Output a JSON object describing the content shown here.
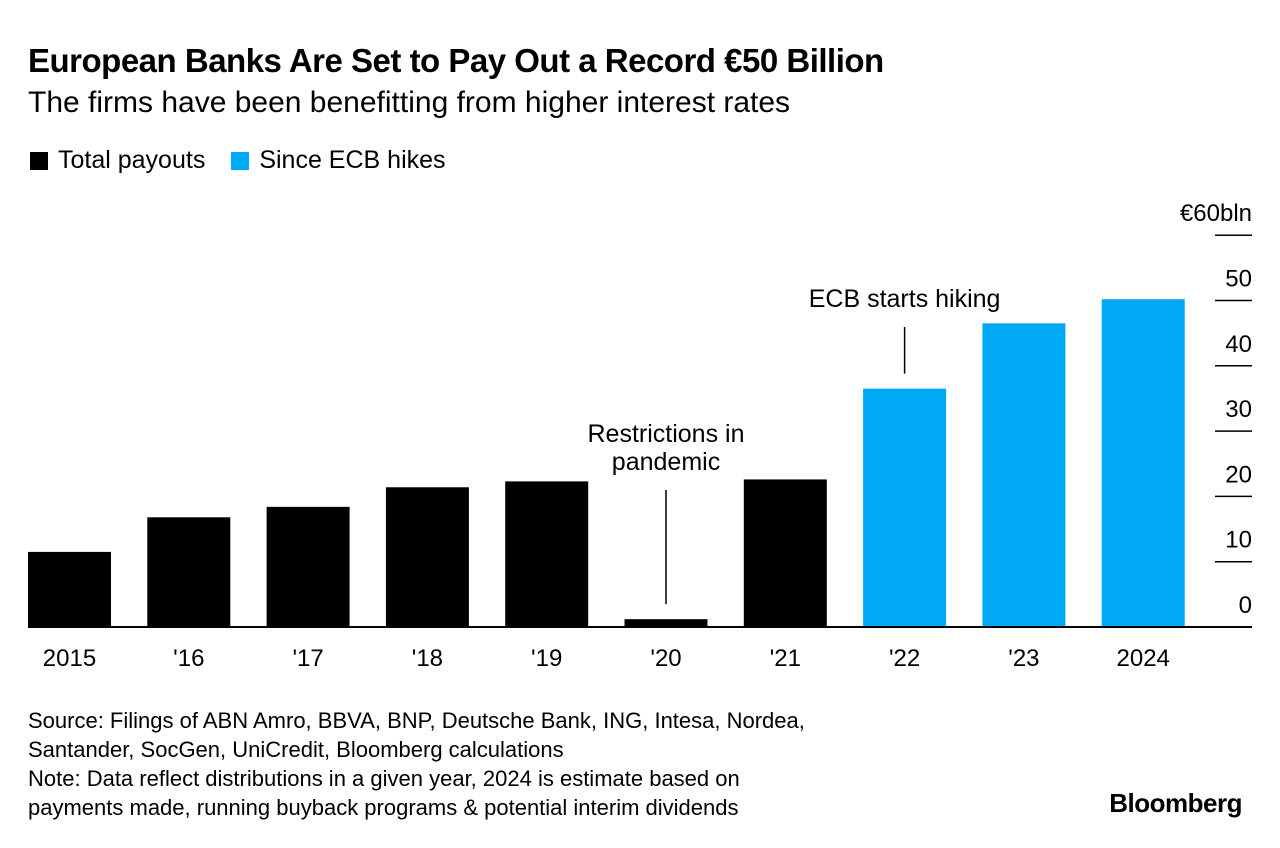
{
  "header": {
    "title": "European Banks Are Set to Pay Out a Record €50 Billion",
    "subtitle": "The firms have been benefitting from higher interest rates"
  },
  "colors": {
    "total": "#000000",
    "since_hikes": "#00A9F4"
  },
  "chart_data": {
    "type": "bar",
    "title": "European Banks Are Set to Pay Out a Record €50 Billion",
    "subtitle": "The firms have been benefitting from higher interest rates",
    "unit_label": "€60bln",
    "categories": [
      "2015",
      "'16",
      "'17",
      "'18",
      "'19",
      "'20",
      "'21",
      "'22",
      "'23",
      "2024"
    ],
    "series": [
      {
        "name": "Total payouts",
        "color": "#000000",
        "values": [
          11.5,
          16.8,
          18.4,
          21.4,
          22.3,
          1.2,
          22.6,
          null,
          null,
          null
        ]
      },
      {
        "name": "Since ECB hikes",
        "color": "#00A9F4",
        "values": [
          null,
          null,
          null,
          null,
          null,
          null,
          null,
          36.5,
          46.5,
          50.2
        ]
      }
    ],
    "ylim": [
      0,
      60
    ],
    "yticks": [
      0,
      10,
      20,
      30,
      40,
      50
    ],
    "yaxis_position": "right",
    "legend_position": "top-left",
    "annotations": [
      {
        "category_index": 5,
        "lines": [
          "Restrictions in",
          "pandemic"
        ]
      },
      {
        "category_index": 7,
        "lines": [
          "ECB starts hiking"
        ]
      }
    ]
  },
  "footer": {
    "source_line1": "Source: Filings of ABN Amro, BBVA, BNP, Deutsche Bank, ING, Intesa, Nordea,",
    "source_line2": "Santander, SocGen, UniCredit, Bloomberg calculations",
    "note_line1": "Note: Data reflect distributions in a given year, 2024 is estimate based on",
    "note_line2": "payments made, running buyback programs & potential interim dividends",
    "brand": "Bloomberg"
  }
}
